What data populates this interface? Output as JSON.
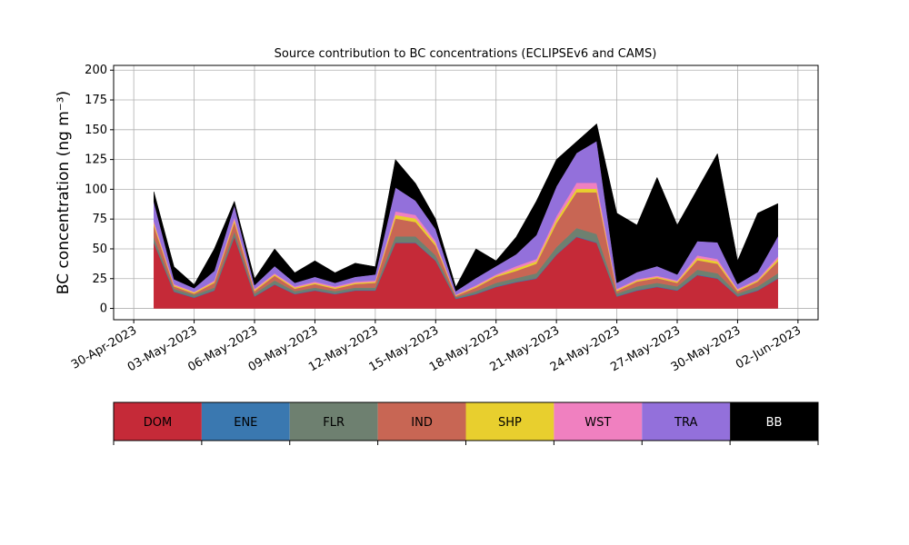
{
  "chart_data": {
    "type": "stacked_area",
    "title": "Source contribution to BC concentrations (ECLIPSEv6 and CAMS)",
    "ylabel": "BC concentration (ng m⁻³)",
    "x": [
      "2023-05-01",
      "2023-05-02",
      "2023-05-03",
      "2023-05-04",
      "2023-05-05",
      "2023-05-06",
      "2023-05-07",
      "2023-05-08",
      "2023-05-09",
      "2023-05-10",
      "2023-05-11",
      "2023-05-12",
      "2023-05-13",
      "2023-05-14",
      "2023-05-15",
      "2023-05-16",
      "2023-05-17",
      "2023-05-18",
      "2023-05-19",
      "2023-05-20",
      "2023-05-21",
      "2023-05-22",
      "2023-05-23",
      "2023-05-24",
      "2023-05-25",
      "2023-05-26",
      "2023-05-27",
      "2023-05-28",
      "2023-05-29",
      "2023-05-30",
      "2023-05-31",
      "2023-06-01"
    ],
    "series": [
      {
        "name": "DOM",
        "color": "#c52a38",
        "values": [
          55,
          14,
          9,
          15,
          60,
          10,
          20,
          12,
          15,
          12,
          15,
          15,
          55,
          55,
          40,
          8,
          12,
          18,
          22,
          25,
          45,
          60,
          55,
          10,
          15,
          18,
          15,
          28,
          25,
          10,
          15,
          25
        ]
      },
      {
        "name": "ENE",
        "color": "#3a78b0",
        "values": [
          0.5,
          0.5,
          0.5,
          0.5,
          0.5,
          0.5,
          0.5,
          0.5,
          0.5,
          0.5,
          0.5,
          0.5,
          0.5,
          0.5,
          0.5,
          0.5,
          0.5,
          0.5,
          0.5,
          0.5,
          0.5,
          0.5,
          0.5,
          0.5,
          0.5,
          0.5,
          0.5,
          0.5,
          0.5,
          0.5,
          0.5,
          0.5
        ]
      },
      {
        "name": "FLR",
        "color": "#6e8070",
        "values": [
          4,
          2,
          2,
          2,
          4,
          2,
          3,
          2,
          2,
          2,
          2,
          2,
          5,
          5,
          4,
          1,
          2,
          3,
          3,
          4,
          6,
          7,
          7,
          2,
          3,
          3,
          3,
          4,
          4,
          2,
          3,
          4
        ]
      },
      {
        "name": "IND",
        "color": "#c86654",
        "values": [
          10,
          2,
          1,
          4,
          8,
          2,
          4,
          2,
          3,
          2,
          3,
          4,
          15,
          12,
          8,
          1,
          3,
          5,
          6,
          8,
          20,
          30,
          35,
          2,
          4,
          4,
          3,
          8,
          8,
          2,
          4,
          10
        ]
      },
      {
        "name": "SHP",
        "color": "#e8cf2e",
        "values": [
          2,
          1,
          1,
          1,
          2,
          1,
          1,
          1,
          1,
          1,
          1,
          1,
          3,
          3,
          2,
          0.5,
          1,
          1,
          2,
          2,
          3,
          3,
          3,
          1,
          1,
          1,
          1,
          2,
          2,
          1,
          1,
          2
        ]
      },
      {
        "name": "WST",
        "color": "#f080c0",
        "values": [
          2,
          1,
          0.5,
          1,
          2,
          1,
          1,
          1,
          1,
          1,
          1,
          1,
          3,
          3,
          2,
          0.5,
          1,
          1,
          2,
          2,
          3,
          5,
          5,
          1,
          1,
          1,
          1,
          2,
          2,
          1,
          1,
          2
        ]
      },
      {
        "name": "TRA",
        "color": "#9370db",
        "values": [
          16,
          4,
          3,
          8,
          10,
          3,
          6,
          3,
          4,
          3,
          4,
          5,
          20,
          12,
          10,
          3,
          6,
          7,
          10,
          20,
          25,
          25,
          35,
          5,
          6,
          8,
          5,
          12,
          14,
          4,
          6,
          17
        ]
      },
      {
        "name": "BB",
        "color": "#000000",
        "values": [
          8.5,
          10.5,
          3,
          18.5,
          3.5,
          5.5,
          14.5,
          8.5,
          13.5,
          8.5,
          11.5,
          6.5,
          23.5,
          14.5,
          8.5,
          3.5,
          24.5,
          4.5,
          14.5,
          28.5,
          22.5,
          9.5,
          14.5,
          58.5,
          39.5,
          74.5,
          41.5,
          43.5,
          74.5,
          19.5,
          49.5,
          27.5
        ]
      }
    ],
    "xlim": [
      "2023-04-29",
      "2023-06-03"
    ],
    "xticks": [
      {
        "value": "2023-04-30",
        "label": "30-Apr-2023"
      },
      {
        "value": "2023-05-03",
        "label": "03-May-2023"
      },
      {
        "value": "2023-05-06",
        "label": "06-May-2023"
      },
      {
        "value": "2023-05-09",
        "label": "09-May-2023"
      },
      {
        "value": "2023-05-12",
        "label": "12-May-2023"
      },
      {
        "value": "2023-05-15",
        "label": "15-May-2023"
      },
      {
        "value": "2023-05-18",
        "label": "18-May-2023"
      },
      {
        "value": "2023-05-21",
        "label": "21-May-2023"
      },
      {
        "value": "2023-05-24",
        "label": "24-May-2023"
      },
      {
        "value": "2023-05-27",
        "label": "27-May-2023"
      },
      {
        "value": "2023-05-30",
        "label": "30-May-2023"
      },
      {
        "value": "2023-06-02",
        "label": "02-Jun-2023"
      }
    ],
    "ylim": [
      -9.5,
      204
    ],
    "yticks": [
      0,
      25,
      50,
      75,
      100,
      125,
      150,
      175,
      200
    ],
    "grid": true,
    "legend": "bottom"
  }
}
